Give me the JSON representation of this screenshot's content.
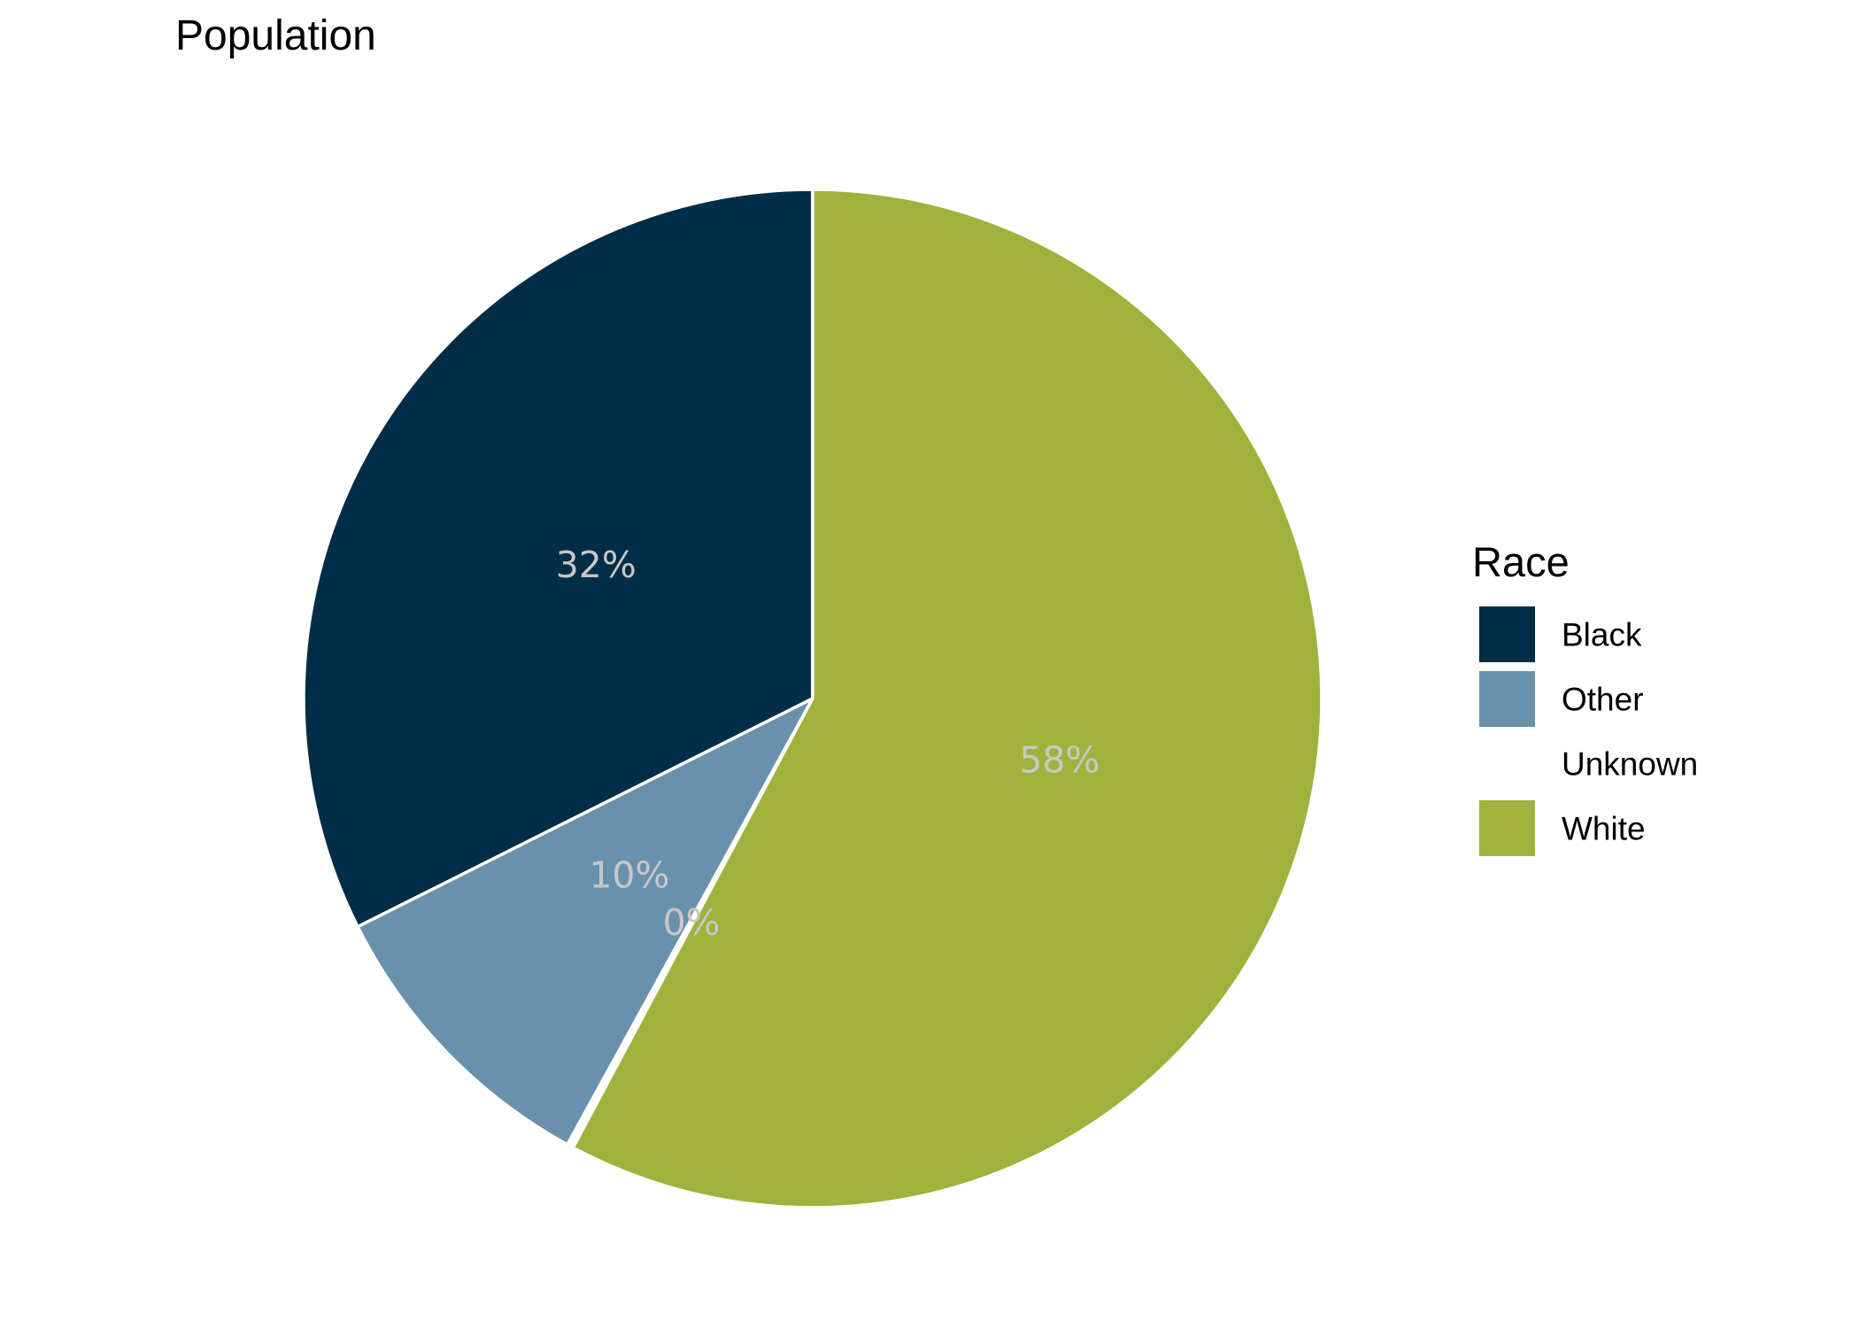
{
  "chart_data": {
    "type": "pie",
    "title": "Population",
    "legend": {
      "title": "Race",
      "position": "right"
    },
    "start": "12 o'clock",
    "direction": "counterclockwise",
    "slices": [
      {
        "name": "Black",
        "value": 32.4,
        "label": "32%",
        "color": "#022d46"
      },
      {
        "name": "Other",
        "value": 9.6,
        "label": "10%",
        "color": "#6991ab"
      },
      {
        "name": "Unknown",
        "value": 0.2,
        "label": "0%",
        "color": "#ffffff"
      },
      {
        "name": "White",
        "value": 57.8,
        "label": "58%",
        "color": "#a0b23c"
      }
    ],
    "label_color": "#c8c8c8",
    "slice_border_color": "#ffffff"
  }
}
